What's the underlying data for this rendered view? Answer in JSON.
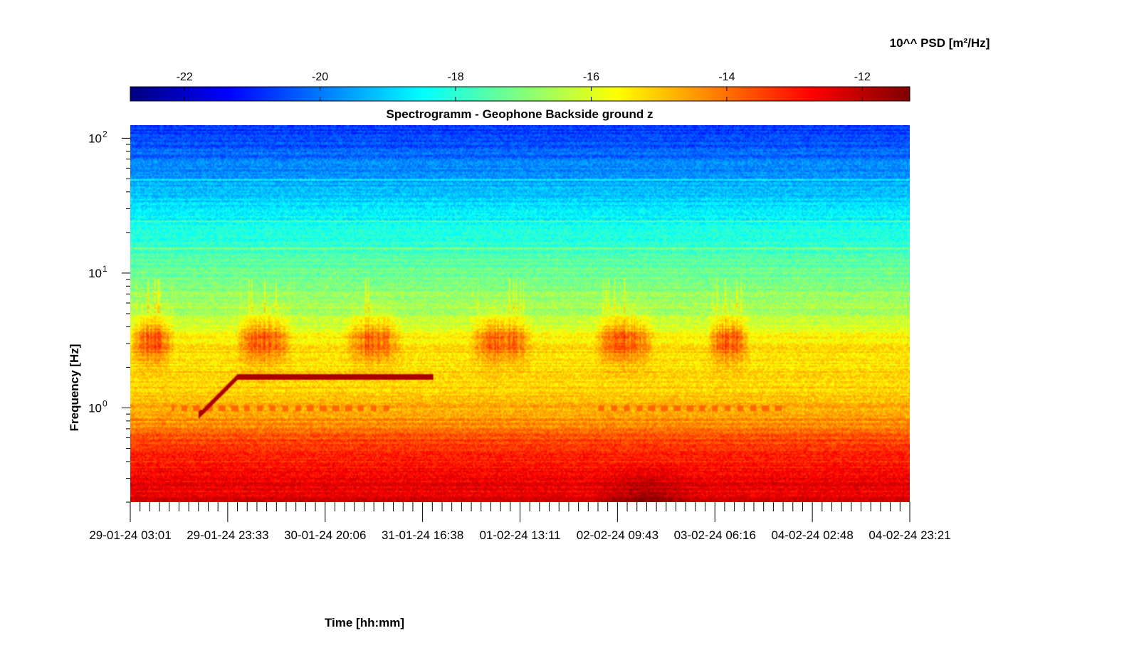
{
  "chart_data": {
    "type": "heatmap",
    "title": "Spectrogramm - Geophone Backside ground z",
    "xlabel": "Time [hh:mm]",
    "ylabel": "Frequency [Hz]",
    "colorbar": {
      "label": "10^^ PSD [m²/Hz]",
      "colormap": "jet",
      "range": [
        -22.8,
        -11.3
      ],
      "ticks": [
        -22,
        -20,
        -18,
        -16,
        -14,
        -12
      ],
      "tick_labels": [
        "-22",
        "-20",
        "-18",
        "-16",
        "-14",
        "-12"
      ],
      "placement": "top"
    },
    "x_ticks": [
      "29-01-24 03:01",
      "29-01-24 23:33",
      "30-01-24 20:06",
      "31-01-24 16:38",
      "01-02-24 13:11",
      "02-02-24 09:43",
      "03-02-24 06:16",
      "04-02-24 02:48",
      "04-02-24 23:21"
    ],
    "y_scale": "log",
    "y_range_hz": [
      0.2,
      125
    ],
    "y_ticks": [
      {
        "base": "10",
        "exp": "0",
        "value": 1
      },
      {
        "base": "10",
        "exp": "1",
        "value": 10
      },
      {
        "base": "10",
        "exp": "2",
        "value": 100
      }
    ],
    "grid": false,
    "features": {
      "background_psd_by_freq": [
        {
          "freq": 0.2,
          "psd": -12.4
        },
        {
          "freq": 0.35,
          "psd": -12.9
        },
        {
          "freq": 0.55,
          "psd": -13.4
        },
        {
          "freq": 0.8,
          "psd": -14.4
        },
        {
          "freq": 1.2,
          "psd": -15.0
        },
        {
          "freq": 2.0,
          "psd": -15.2
        },
        {
          "freq": 3.0,
          "psd": -15.3
        },
        {
          "freq": 5.0,
          "psd": -16.6
        },
        {
          "freq": 10.0,
          "psd": -17.2
        },
        {
          "freq": 20.0,
          "psd": -18.2
        },
        {
          "freq": 40.0,
          "psd": -19.2
        },
        {
          "freq": 80.0,
          "psd": -20.3
        },
        {
          "freq": 125.0,
          "psd": -20.8
        }
      ],
      "daily_activity_band": {
        "freq_low": 2.3,
        "freq_high": 4.8,
        "peak_freq": 3.3,
        "peak_psd": -13.6
      },
      "activity_day_fractions": [
        0.1,
        0.27,
        0.47,
        0.75,
        0.97,
        1.18,
        1.36,
        1.56,
        1.86,
        2.12,
        2.35,
        2.62,
        2.9,
        3.12,
        3.4,
        3.63,
        3.93,
        4.12,
        4.4,
        4.64,
        4.88,
        5.15,
        5.4,
        5.62,
        5.85,
        6.05
      ],
      "activity_windows_days": [
        [
          0.0,
          0.4
        ],
        [
          0.92,
          1.43
        ],
        [
          1.88,
          2.4
        ],
        [
          2.97,
          3.55
        ],
        [
          4.07,
          4.62
        ],
        [
          5.07,
          5.45
        ]
      ],
      "tonal_line": {
        "psd": -11.8,
        "points": [
          {
            "time_days": 0.6,
            "freq": 0.88
          },
          {
            "time_days": 0.95,
            "freq": 1.7
          },
          {
            "time_days": 2.66,
            "freq": 1.7
          }
        ]
      },
      "dashed_line_1hz": {
        "freq": 1.0,
        "psd": -13.9,
        "segments_days": [
          [
            0.36,
            2.33
          ],
          [
            4.07,
            5.75
          ]
        ]
      },
      "low_freq_maximum": {
        "time_days": 4.54,
        "freq_low": 0.2,
        "freq_high": 0.32,
        "psd": -11.6
      },
      "harmonic_lines_hz": [
        15.4,
        24.0,
        49.5
      ]
    }
  }
}
